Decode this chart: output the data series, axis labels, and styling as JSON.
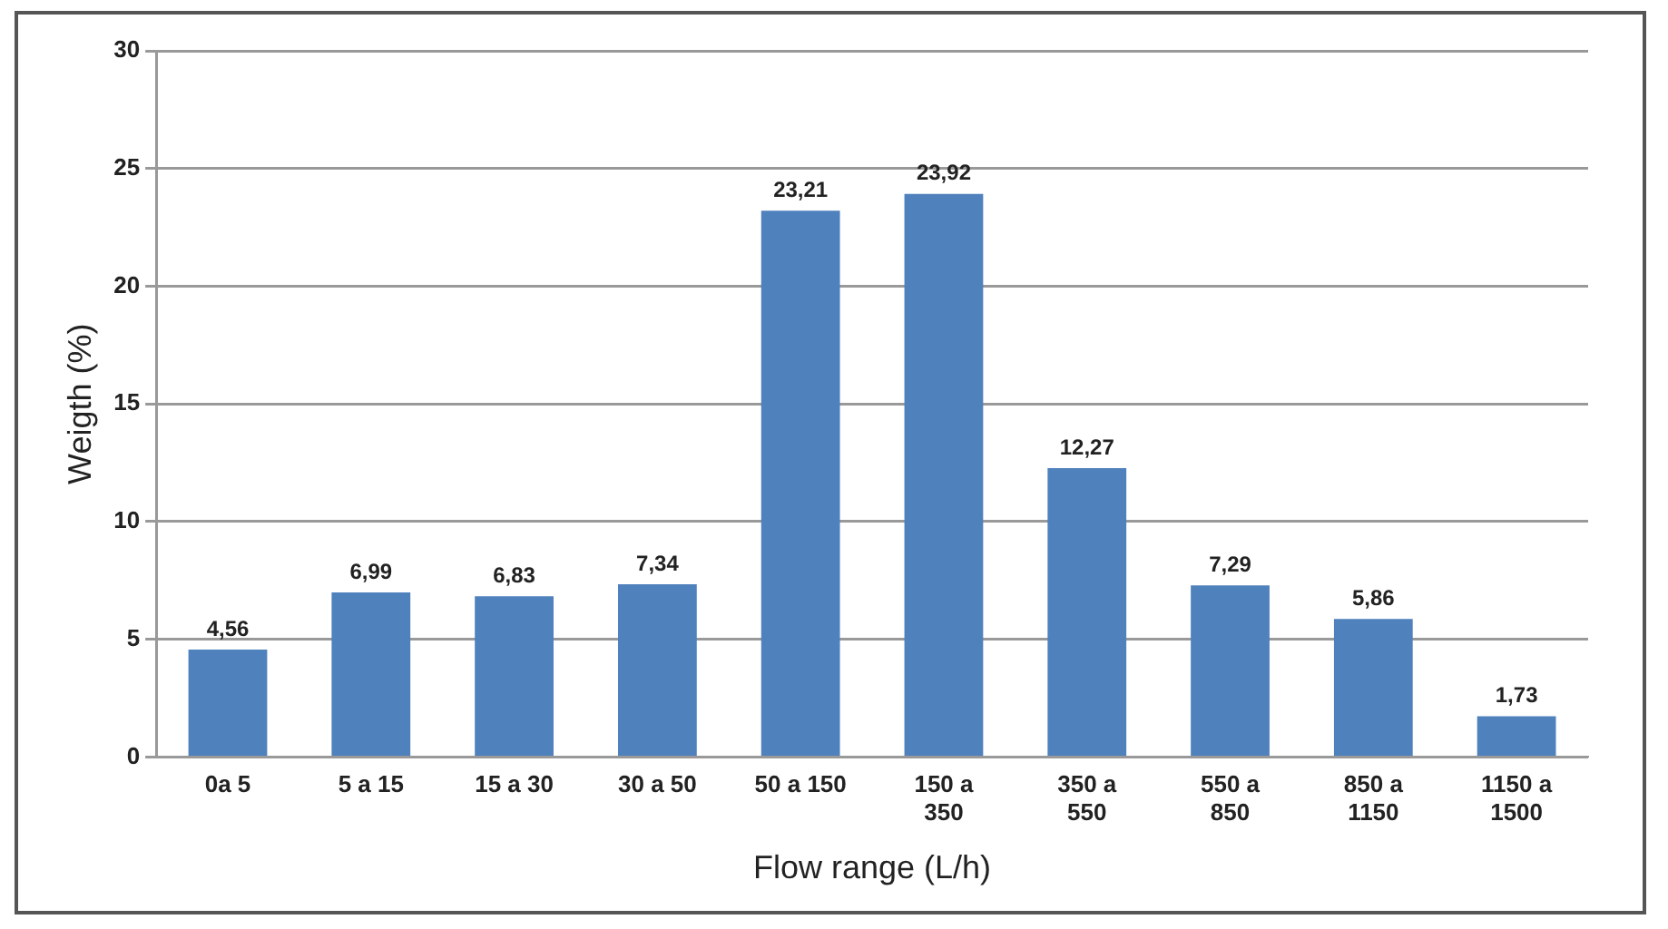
{
  "chart_data": {
    "type": "bar",
    "xlabel": "Flow range (L/h)",
    "ylabel": "Weigth (%)",
    "categories": [
      "0a 5",
      "5 a 15",
      "15 a 30",
      "30 a 50",
      "50 a 150",
      "150 a 350",
      "350 a 550",
      "550 a 850",
      "850 a 1150",
      "1150 a 1500"
    ],
    "values": [
      4.56,
      6.99,
      6.83,
      7.34,
      23.21,
      23.92,
      12.27,
      7.29,
      5.86,
      1.73
    ],
    "value_labels": [
      "4,56",
      "6,99",
      "6,83",
      "7,34",
      "23,21",
      "23,92",
      "12,27",
      "7,29",
      "5,86",
      "1,73"
    ],
    "color": "#4f81bd",
    "ylim": [
      0,
      30
    ],
    "yticks": [
      0,
      5,
      10,
      15,
      20,
      25,
      30
    ],
    "grid": "y",
    "legend": false
  }
}
